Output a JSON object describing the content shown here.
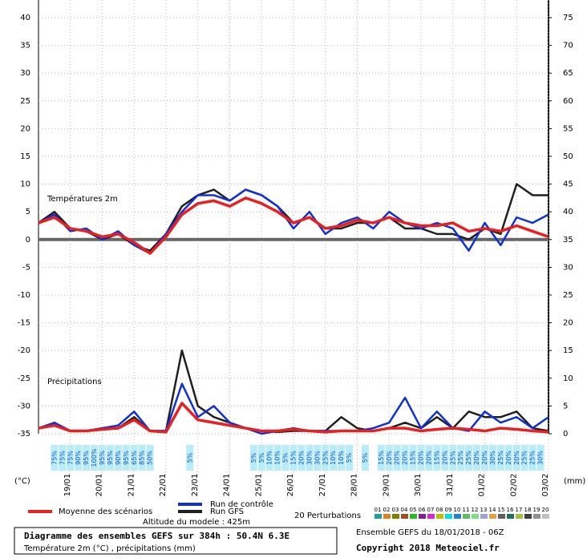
{
  "chart_data": {
    "type": "line",
    "title": "Diagramme des ensembles GEFS sur 384h : 50.4N 6.3E",
    "subtitle": "Température 2m (°C) , précipitations (mm)",
    "run_info": "Ensemble GEFS du 18/01/2018 - 06Z",
    "copyright": "Copyright 2018 Meteociel.fr",
    "altitude": "Altitude du modele : 425m",
    "temp_label": "Températures 2m",
    "precip_label": "Précipitations",
    "y_unit": "(°C)",
    "y2_unit": "(mm)",
    "grid": true,
    "x": [
      0,
      12,
      24,
      36,
      48,
      60,
      72,
      84,
      96,
      108,
      120,
      132,
      144,
      156,
      168,
      180,
      192,
      204,
      216,
      228,
      240,
      252,
      264,
      276,
      288,
      300,
      312,
      324,
      336,
      348,
      360,
      372,
      384
    ],
    "xlim": [
      0,
      384
    ],
    "xticks": [
      {
        "value": 24,
        "label": "19/01"
      },
      {
        "value": 48,
        "label": "20/01"
      },
      {
        "value": 72,
        "label": "21/01"
      },
      {
        "value": 96,
        "label": "22/01"
      },
      {
        "value": 120,
        "label": "23/01"
      },
      {
        "value": 144,
        "label": "24/01"
      },
      {
        "value": 168,
        "label": "25/01"
      },
      {
        "value": 192,
        "label": "26/01"
      },
      {
        "value": 216,
        "label": "27/01"
      },
      {
        "value": 240,
        "label": "28/01"
      },
      {
        "value": 264,
        "label": "29/01"
      },
      {
        "value": 288,
        "label": "30/01"
      },
      {
        "value": 312,
        "label": "31/01"
      },
      {
        "value": 336,
        "label": "01/02"
      },
      {
        "value": 360,
        "label": "02/02"
      },
      {
        "value": 384,
        "label": "03/02"
      }
    ],
    "ylim": [
      -35,
      40
    ],
    "yticks": [
      -35,
      -30,
      -25,
      -20,
      -15,
      -10,
      -5,
      0,
      5,
      10,
      15,
      20,
      25,
      30,
      35,
      40
    ],
    "y2lim": [
      0,
      75
    ],
    "y2ticks": [
      0,
      5,
      10,
      15,
      20,
      25,
      30,
      35,
      40,
      45,
      50,
      55,
      60,
      65,
      70,
      75
    ],
    "series": [
      {
        "name": "Moyenne des scénarios",
        "color": "#e82020",
        "values": [
          3,
          4,
          2,
          1.5,
          0.5,
          1,
          -0.5,
          -2.5,
          0.5,
          4.5,
          6.5,
          7,
          6,
          7.5,
          6.5,
          5,
          3,
          4,
          2,
          2.5,
          3.5,
          3,
          4,
          3,
          2.5,
          2.5,
          3,
          1.5,
          2,
          1.5,
          2.5,
          1.5,
          0.5
        ],
        "precip": [
          1,
          1.5,
          0.5,
          0.5,
          0.8,
          1,
          2.5,
          0.5,
          0.3,
          5.5,
          2.5,
          2,
          1.5,
          1,
          0.5,
          0.5,
          0.8,
          0.5,
          0.3,
          0.5,
          0.5,
          0.5,
          1,
          1,
          0.5,
          0.8,
          1,
          0.8,
          0.5,
          1,
          0.8,
          0.5,
          0.3
        ]
      },
      {
        "name": "Run de contrôle",
        "color": "#1030d8",
        "values": [
          3,
          4.5,
          1.5,
          2,
          0,
          1.5,
          -1,
          -2.5,
          1,
          5,
          8,
          8,
          7,
          9,
          8,
          6,
          2,
          5,
          1,
          3,
          4,
          2,
          5,
          3,
          2,
          3,
          2,
          -2,
          3,
          -1,
          4,
          3,
          4.5
        ],
        "precip": [
          1,
          2,
          0.5,
          0.5,
          1,
          1.5,
          4,
          0.5,
          0.5,
          9,
          3,
          5,
          2,
          1,
          0,
          0.5,
          1,
          0.5,
          0.5,
          0.5,
          0.5,
          1,
          2,
          6.5,
          1,
          4,
          1,
          0.5,
          4,
          2,
          3,
          1,
          3
        ]
      },
      {
        "name": "Run GFS",
        "color": "#202020",
        "values": [
          3,
          5,
          2,
          1.5,
          0,
          1,
          -1,
          -2,
          1,
          6,
          8,
          9,
          7,
          9,
          8,
          6,
          3,
          4,
          2,
          2,
          3,
          3,
          4,
          2,
          2,
          1,
          1,
          0,
          2,
          1,
          10,
          8,
          8
        ],
        "precip": [
          1,
          1.5,
          0.5,
          0.5,
          1,
          1,
          3,
          0.5,
          0.5,
          15,
          5,
          3,
          2,
          1,
          0.5,
          0.3,
          0.5,
          0.5,
          0.5,
          3,
          1,
          0.5,
          1,
          2,
          1,
          3,
          1,
          4,
          3,
          3,
          4,
          1,
          0.5
        ]
      }
    ],
    "perturbations": {
      "label": "20 Perturbations",
      "members": [
        {
          "label": "01",
          "color": "#20a0a0"
        },
        {
          "label": "02",
          "color": "#e08020"
        },
        {
          "label": "03",
          "color": "#808000"
        },
        {
          "label": "04",
          "color": "#a05020"
        },
        {
          "label": "05",
          "color": "#20c020"
        },
        {
          "label": "06",
          "color": "#8020a0"
        },
        {
          "label": "07",
          "color": "#e020e0"
        },
        {
          "label": "08",
          "color": "#c0c000"
        },
        {
          "label": "09",
          "color": "#00e0e0"
        },
        {
          "label": "10",
          "color": "#2080e0"
        },
        {
          "label": "11",
          "color": "#60c060"
        },
        {
          "label": "12",
          "color": "#80e080"
        },
        {
          "label": "13",
          "color": "#a0a0e0"
        },
        {
          "label": "14",
          "color": "#e0a040"
        },
        {
          "label": "15",
          "color": "#606060"
        },
        {
          "label": "16",
          "color": "#207060"
        },
        {
          "label": "17",
          "color": "#a0c040"
        },
        {
          "label": "18",
          "color": "#404040"
        },
        {
          "label": "19",
          "color": "#909090"
        },
        {
          "label": "20",
          "color": "#c0c0c0"
        }
      ]
    },
    "snow": {
      "x": [
        12,
        18,
        24,
        30,
        36,
        42,
        48,
        54,
        60,
        66,
        72,
        78,
        84,
        114,
        162,
        168,
        174,
        180,
        186,
        192,
        198,
        204,
        210,
        216,
        222,
        228,
        234,
        246,
        258,
        264,
        270,
        276,
        282,
        288,
        294,
        300,
        306,
        312,
        318,
        324,
        330,
        336,
        342,
        348,
        354,
        360,
        366,
        372,
        378
      ],
      "labels": [
        "75%",
        "75%",
        "75%",
        "90%",
        "95%",
        "100%",
        "95%",
        "95%",
        "90%",
        "95%",
        "65%",
        "85%",
        "50%",
        "5%",
        "5%",
        "5%",
        "10%",
        "10%",
        "5%",
        "15%",
        "20%",
        "30%",
        "30%",
        "25%",
        "10%",
        "10%",
        "5%",
        "5%",
        "15%",
        "20%",
        "20%",
        "20%",
        "15%",
        "20%",
        "20%",
        "15%",
        "20%",
        "25%",
        "25%",
        "25%",
        "20%",
        "20%",
        "30%",
        "25%",
        "20%",
        "20%",
        "25%",
        "25%",
        "30%"
      ]
    }
  }
}
